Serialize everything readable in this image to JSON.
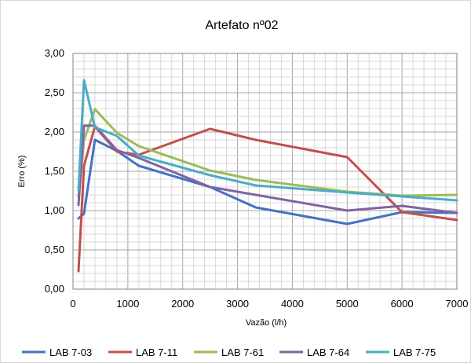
{
  "chart_data": {
    "type": "line",
    "title": "Artefato nº02",
    "xlabel": "Vazão (l/h)",
    "ylabel": "Erro (%)",
    "xlim": [
      0,
      7000
    ],
    "ylim": [
      0,
      3
    ],
    "x_ticks": [
      "0",
      "1000",
      "2000",
      "3000",
      "4000",
      "5000",
      "6000",
      "7000"
    ],
    "y_ticks": [
      "0,00",
      "0,50",
      "1,00",
      "1,50",
      "2,00",
      "2,50",
      "3,00"
    ],
    "grid": true,
    "legend_position": "bottom",
    "series": [
      {
        "name": "LAB 7-03",
        "color": "#4472C4",
        "points": [
          [
            100,
            0.9
          ],
          [
            200,
            0.96
          ],
          [
            400,
            1.9
          ],
          [
            800,
            1.76
          ],
          [
            1200,
            1.57
          ],
          [
            2500,
            1.3
          ],
          [
            3333,
            1.04
          ],
          [
            5000,
            0.83
          ],
          [
            6000,
            0.98
          ],
          [
            7000,
            0.97
          ]
        ]
      },
      {
        "name": "LAB 7-11",
        "color": "#C0504D",
        "points": [
          [
            100,
            0.23
          ],
          [
            200,
            1.57
          ],
          [
            400,
            2.07
          ],
          [
            800,
            1.75
          ],
          [
            1200,
            1.71
          ],
          [
            2500,
            2.04
          ],
          [
            3333,
            1.9
          ],
          [
            5000,
            1.68
          ],
          [
            6000,
            0.98
          ],
          [
            7000,
            0.88
          ]
        ]
      },
      {
        "name": "LAB 7-61",
        "color": "#9BBB59",
        "points": [
          [
            100,
            1.17
          ],
          [
            200,
            1.9
          ],
          [
            400,
            2.29
          ],
          [
            800,
            1.99
          ],
          [
            1200,
            1.82
          ],
          [
            2500,
            1.51
          ],
          [
            3333,
            1.39
          ],
          [
            5000,
            1.24
          ],
          [
            6000,
            1.19
          ],
          [
            7000,
            1.2
          ]
        ]
      },
      {
        "name": "LAB 7-64",
        "color": "#8064A2",
        "points": [
          [
            100,
            1.07
          ],
          [
            200,
            2.08
          ],
          [
            400,
            2.08
          ],
          [
            800,
            1.77
          ],
          [
            1200,
            1.67
          ],
          [
            2500,
            1.3
          ],
          [
            3333,
            1.2
          ],
          [
            5000,
            1.0
          ],
          [
            6000,
            1.06
          ],
          [
            7000,
            0.97
          ]
        ]
      },
      {
        "name": "LAB 7-75",
        "color": "#4BACC6",
        "points": [
          [
            100,
            1.26
          ],
          [
            200,
            2.66
          ],
          [
            400,
            2.06
          ],
          [
            800,
            1.95
          ],
          [
            1200,
            1.7
          ],
          [
            2500,
            1.45
          ],
          [
            3333,
            1.32
          ],
          [
            5000,
            1.23
          ],
          [
            6000,
            1.18
          ],
          [
            7000,
            1.13
          ]
        ]
      }
    ]
  }
}
